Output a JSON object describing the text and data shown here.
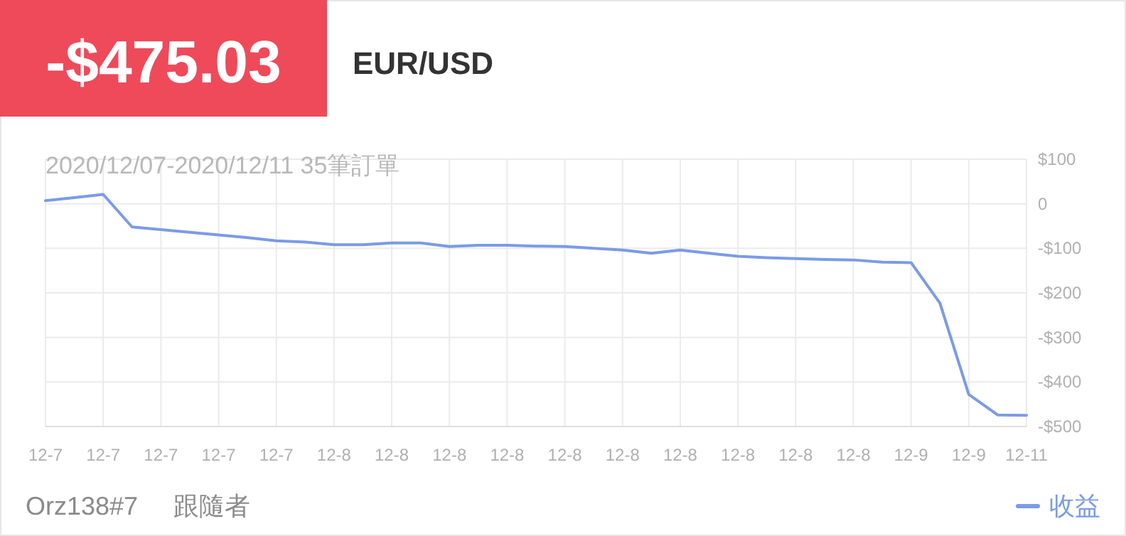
{
  "chart_data": {
    "type": "line",
    "title": "-$475.03",
    "subtitle": "EUR/USD",
    "annotations": [
      "2020/12/07-2020/12/11 35筆訂單",
      "Orz138#7     跟隨者"
    ],
    "categories": [
      "12-7",
      null,
      "12-7",
      null,
      "12-7",
      null,
      "12-7",
      null,
      "12-7",
      null,
      "12-8",
      null,
      "12-8",
      null,
      "12-8",
      null,
      "12-8",
      null,
      "12-8",
      null,
      "12-8",
      null,
      "12-8",
      null,
      "12-8",
      null,
      "12-8",
      null,
      "12-8",
      null,
      "12-9",
      null,
      "12-9",
      null,
      "12-11"
    ],
    "series": [
      {
        "name": "收益",
        "color": "#7b9be6",
        "values": [
          7,
          14,
          21,
          -52,
          -58,
          -64,
          -70,
          -76,
          -83,
          -86,
          -92,
          -92,
          -88,
          -88,
          -96,
          -93,
          -93,
          -95,
          -96,
          -100,
          -104,
          -111,
          -104,
          -111,
          -118,
          -121,
          -123,
          -125,
          -126,
          -131,
          -132,
          -223,
          -428,
          -474,
          -475
        ]
      }
    ],
    "ylim": [
      -500,
      100
    ],
    "yticks": [
      {
        "value": 100,
        "label": "$100"
      },
      0,
      {
        "value": -100,
        "label": "-$100"
      },
      {
        "value": -200,
        "label": "-$200"
      },
      {
        "value": -300,
        "label": "-$300"
      },
      {
        "value": -400,
        "label": "-$400"
      },
      {
        "value": -500,
        "label": "-$500"
      }
    ],
    "grid": true,
    "legend": "bottom right"
  }
}
